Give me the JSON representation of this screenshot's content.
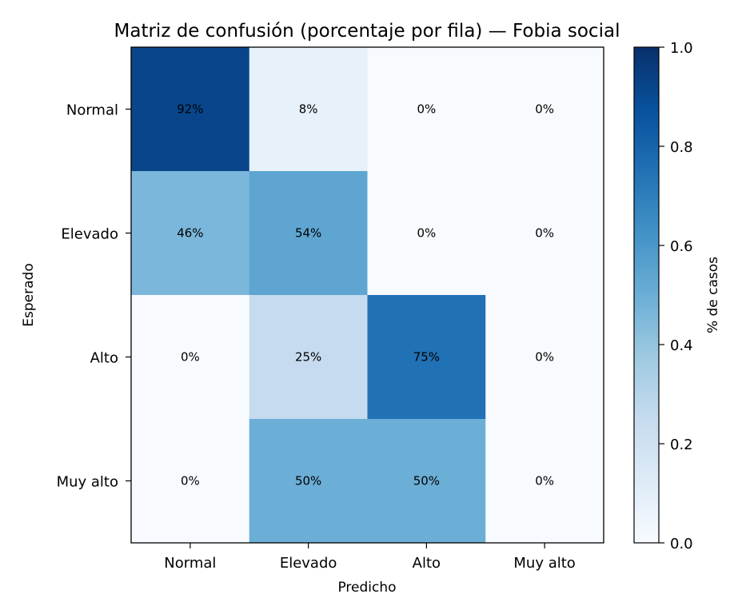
{
  "chart_data": {
    "type": "heatmap",
    "title": "Matriz de confusión (porcentaje por fila) — Fobia social",
    "xlabel": "Predicho",
    "ylabel": "Esperado",
    "x_categories": [
      "Normal",
      "Elevado",
      "Alto",
      "Muy alto"
    ],
    "y_categories": [
      "Normal",
      "Elevado",
      "Alto",
      "Muy alto"
    ],
    "values": [
      [
        0.92,
        0.08,
        0.0,
        0.0
      ],
      [
        0.46,
        0.54,
        0.0,
        0.0
      ],
      [
        0.0,
        0.25,
        0.75,
        0.0
      ],
      [
        0.0,
        0.5,
        0.5,
        0.0
      ]
    ],
    "cell_labels": [
      [
        "92%",
        "8%",
        "0%",
        "0%"
      ],
      [
        "46%",
        "54%",
        "0%",
        "0%"
      ],
      [
        "0%",
        "25%",
        "75%",
        "0%"
      ],
      [
        "0%",
        "50%",
        "50%",
        "0%"
      ]
    ],
    "colormap": "Blues",
    "colorbar": {
      "label": "% de casos",
      "range": [
        0.0,
        1.0
      ],
      "ticks": [
        "0.0",
        "0.2",
        "0.4",
        "0.6",
        "0.8",
        "1.0"
      ]
    }
  }
}
